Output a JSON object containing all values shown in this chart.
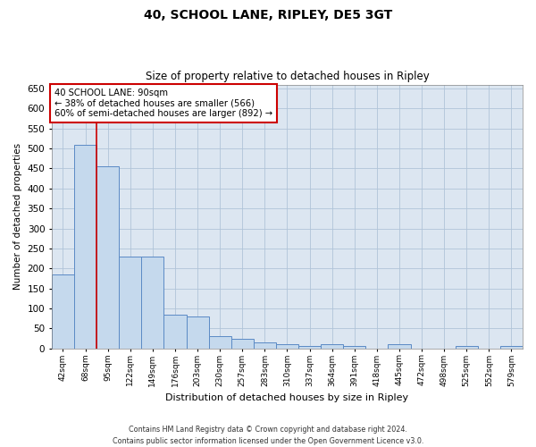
{
  "title": "40, SCHOOL LANE, RIPLEY, DE5 3GT",
  "subtitle": "Size of property relative to detached houses in Ripley",
  "xlabel": "Distribution of detached houses by size in Ripley",
  "ylabel": "Number of detached properties",
  "annotation_line1": "40 SCHOOL LANE: 90sqm",
  "annotation_line2": "← 38% of detached houses are smaller (566)",
  "annotation_line3": "60% of semi-detached houses are larger (892) →",
  "footer_line1": "Contains HM Land Registry data © Crown copyright and database right 2024.",
  "footer_line2": "Contains public sector information licensed under the Open Government Licence v3.0.",
  "bins": [
    "42sqm",
    "68sqm",
    "95sqm",
    "122sqm",
    "149sqm",
    "176sqm",
    "203sqm",
    "230sqm",
    "257sqm",
    "283sqm",
    "310sqm",
    "337sqm",
    "364sqm",
    "391sqm",
    "418sqm",
    "445sqm",
    "472sqm",
    "498sqm",
    "525sqm",
    "552sqm",
    "579sqm"
  ],
  "values": [
    185,
    510,
    455,
    230,
    230,
    85,
    80,
    30,
    25,
    15,
    10,
    5,
    10,
    5,
    0,
    10,
    0,
    0,
    5,
    0,
    5
  ],
  "bar_color": "#c5d9ed",
  "bar_edge_color": "#5b8ac5",
  "red_line_color": "#cc0000",
  "annotation_box_color": "#ffffff",
  "annotation_box_edge": "#cc0000",
  "background_color": "#dce6f1",
  "ylim": [
    0,
    660
  ],
  "yticks": [
    0,
    50,
    100,
    150,
    200,
    250,
    300,
    350,
    400,
    450,
    500,
    550,
    600,
    650
  ]
}
